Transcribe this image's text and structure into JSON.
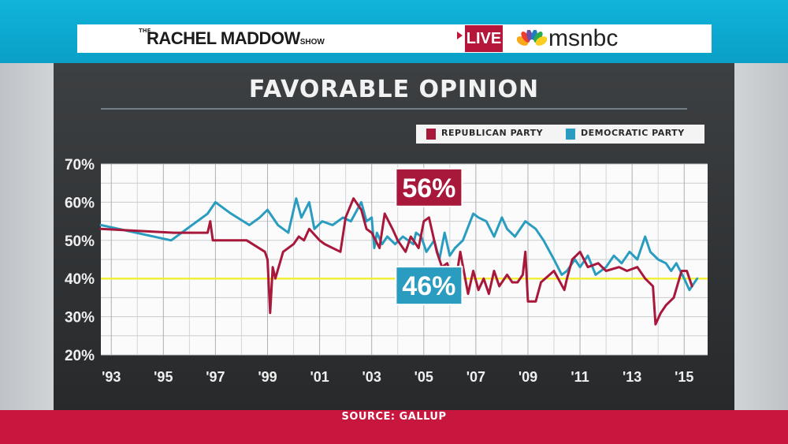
{
  "header": {
    "show_the": "THE",
    "show_name": "RACHEL MADDOW",
    "show_suffix": "SHOW",
    "live_label": "LIVE",
    "network": "msnbc"
  },
  "colors": {
    "republican": "#a8183b",
    "democratic": "#2a9cc0",
    "reference_line": "#f0f03a",
    "plot_bg": "#fbfbfb"
  },
  "chart_data": {
    "type": "line",
    "title": "FAVORABLE OPINION",
    "ylim": [
      20,
      70
    ],
    "yticks": [
      "20%",
      "30%",
      "40%",
      "50%",
      "60%",
      "70%"
    ],
    "ytick_values": [
      20,
      30,
      40,
      50,
      60,
      70
    ],
    "xlim": [
      1992.6,
      2015.9
    ],
    "xticks": [
      "'93",
      "'95",
      "'97",
      "'99",
      "'01",
      "'03",
      "'05",
      "'07",
      "'09",
      "'11",
      "'13",
      "'15"
    ],
    "xtick_values": [
      1993,
      1995,
      1997,
      1999,
      2001,
      2003,
      2005,
      2007,
      2009,
      2011,
      2013,
      2015
    ],
    "grid": true,
    "reference_line": 40,
    "legend_position": "top-right",
    "series": [
      {
        "name": "REPUBLICAN PARTY",
        "color": "#a8183b",
        "x": [
          1992.6,
          1995.4,
          1996.7,
          1996.8,
          1996.9,
          1998.2,
          1998.9,
          1999.0,
          1999.1,
          1999.2,
          1999.3,
          1999.6,
          2000.0,
          2000.2,
          2000.4,
          2000.6,
          2001.0,
          2001.2,
          2001.8,
          2002.0,
          2002.3,
          2002.6,
          2002.8,
          2003.0,
          2003.3,
          2003.5,
          2003.8,
          2004.0,
          2004.3,
          2004.5,
          2004.7,
          2004.8,
          2005.0,
          2005.2,
          2005.5,
          2005.7,
          2005.9,
          2006.2,
          2006.4,
          2006.7,
          2006.9,
          2007.1,
          2007.3,
          2007.5,
          2007.7,
          2007.9,
          2008.2,
          2008.4,
          2008.6,
          2008.8,
          2008.9,
          2009.0,
          2009.3,
          2009.5,
          2010.0,
          2010.4,
          2010.5,
          2010.7,
          2011.0,
          2011.3,
          2011.7,
          2012.0,
          2012.5,
          2012.8,
          2013.2,
          2013.5,
          2013.8,
          2013.9,
          2014.1,
          2014.3,
          2014.6,
          2014.9,
          2015.1,
          2015.3
        ],
        "values": [
          53,
          52,
          52,
          55,
          50,
          50,
          47,
          45,
          31,
          43,
          40,
          47,
          49,
          51,
          50,
          53,
          50,
          49,
          47,
          56,
          61,
          58,
          53,
          52,
          48,
          57,
          53,
          50,
          47,
          51,
          49,
          48,
          55,
          56,
          47,
          43,
          44,
          38,
          47,
          36,
          42,
          37,
          40,
          36,
          42,
          38,
          41,
          39,
          39,
          41,
          47,
          34,
          34,
          39,
          42,
          37,
          40,
          45,
          47,
          43,
          44,
          42,
          43,
          42,
          43,
          40,
          38,
          28,
          31,
          33,
          35,
          42,
          42,
          38
        ]
      },
      {
        "name": "DEMOCRATIC PARTY",
        "color": "#2a9cc0",
        "x": [
          1992.6,
          1995.3,
          1996.7,
          1997.0,
          1997.6,
          1998.3,
          1998.7,
          1999.0,
          1999.4,
          1999.8,
          2000.1,
          2000.3,
          2000.6,
          2000.8,
          2001.1,
          2001.5,
          2001.9,
          2002.2,
          2002.6,
          2002.8,
          2003.0,
          2003.1,
          2003.2,
          2003.4,
          2003.6,
          2003.9,
          2004.2,
          2004.4,
          2004.6,
          2004.7,
          2004.9,
          2005.1,
          2005.4,
          2005.6,
          2005.8,
          2006.0,
          2006.2,
          2006.5,
          2006.9,
          2007.1,
          2007.4,
          2007.7,
          2008.0,
          2008.2,
          2008.5,
          2008.9,
          2009.3,
          2009.6,
          2010.0,
          2010.3,
          2010.5,
          2010.8,
          2011.0,
          2011.3,
          2011.6,
          2012.0,
          2012.3,
          2012.6,
          2012.9,
          2013.2,
          2013.5,
          2013.7,
          2014.0,
          2014.3,
          2014.5,
          2014.7,
          2015.0,
          2015.2,
          2015.5
        ],
        "values": [
          54,
          50,
          57,
          60,
          57,
          54,
          56,
          58,
          54,
          52,
          61,
          56,
          60,
          53,
          55,
          54,
          56,
          55,
          60,
          55,
          56,
          48,
          52,
          49,
          51,
          49,
          51,
          50,
          49,
          52,
          51,
          47,
          50,
          45,
          52,
          46,
          48,
          50,
          57,
          56,
          55,
          51,
          56,
          53,
          51,
          55,
          53,
          50,
          45,
          41,
          42,
          45,
          43,
          46,
          41,
          43,
          46,
          44,
          47,
          45,
          51,
          47,
          45,
          44,
          42,
          44,
          40,
          37,
          40
        ]
      }
    ],
    "callouts": [
      {
        "label": "56%",
        "series": "REPUBLICAN PARTY",
        "x": 2005.2,
        "value": 56
      },
      {
        "label": "46%",
        "series": "DEMOCRATIC PARTY",
        "x": 2005.2,
        "value": 46
      }
    ]
  },
  "footer": {
    "source": "SOURCE: GALLUP"
  }
}
